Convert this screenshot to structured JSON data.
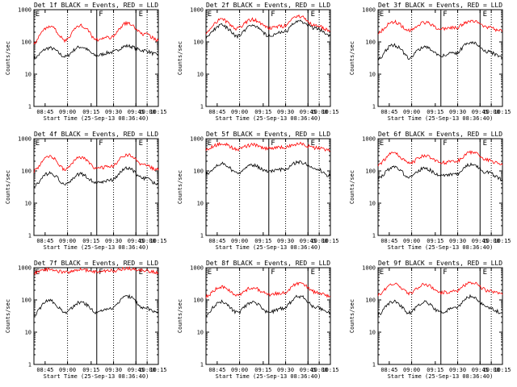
{
  "chart_data": [
    {
      "type": "line",
      "title": "Det 1f BLACK = Events, RED = LLD",
      "xlabel": "Start Time (25-Sep-13 08:36:40)",
      "ylabel": "Counts/sec",
      "yscale": "log",
      "ylim": [
        1,
        1000
      ],
      "yticks": [
        "1",
        "10",
        "100",
        "1000"
      ],
      "xticks": [
        "08:45",
        "09:00",
        "09:15",
        "09:30",
        "09:45",
        "10:00",
        "10:15"
      ],
      "flags": [
        "E",
        "F",
        "E"
      ],
      "series": [
        {
          "name": "Events",
          "color": "#000000",
          "base": [
            32,
            65,
            35,
            70,
            38,
            48,
            75,
            55,
            40
          ]
        },
        {
          "name": "LLD",
          "color": "#ff0000",
          "base": [
            95,
            300,
            110,
            320,
            120,
            140,
            380,
            180,
            115
          ]
        }
      ]
    },
    {
      "type": "line",
      "title": "Det 2f BLACK = Events, RED = LLD",
      "xlabel": "Start Time (25-Sep-13 08:36:40)",
      "ylabel": "Counts/sec",
      "yscale": "log",
      "ylim": [
        1,
        1000
      ],
      "yticks": [
        "1",
        "10",
        "100",
        "1000"
      ],
      "xticks": [
        "08:45",
        "09:00",
        "09:15",
        "09:30",
        "09:45",
        "10:00",
        "10:15"
      ],
      "flags": [
        "E",
        "F",
        "E"
      ],
      "series": [
        {
          "name": "Events",
          "color": "#000000",
          "base": [
            140,
            330,
            150,
            330,
            160,
            200,
            430,
            270,
            155
          ]
        },
        {
          "name": "LLD",
          "color": "#ff0000",
          "base": [
            200,
            490,
            260,
            500,
            270,
            310,
            620,
            330,
            230
          ]
        }
      ]
    },
    {
      "type": "line",
      "title": "Det 3f BLACK = Events, RED = LLD",
      "xlabel": "Start Time (25-Sep-13 08:36:40)",
      "ylabel": "Counts/sec",
      "yscale": "log",
      "ylim": [
        1,
        1000
      ],
      "yticks": [
        "1",
        "10",
        "100",
        "1000"
      ],
      "xticks": [
        "08:45",
        "09:00",
        "09:15",
        "09:30",
        "09:45",
        "10:00",
        "10:15"
      ],
      "flags": [
        "E",
        "F",
        "E"
      ],
      "series": [
        {
          "name": "Events",
          "color": "#000000",
          "base": [
            30,
            80,
            32,
            70,
            38,
            45,
            100,
            50,
            35
          ]
        },
        {
          "name": "LLD",
          "color": "#ff0000",
          "base": [
            200,
            420,
            230,
            400,
            250,
            280,
            450,
            280,
            220
          ]
        }
      ]
    },
    {
      "type": "line",
      "title": "Det 4f BLACK = Events, RED = LLD",
      "xlabel": "Start Time (25-Sep-13 08:36:40)",
      "ylabel": "Counts/sec",
      "yscale": "log",
      "ylim": [
        1,
        1000
      ],
      "yticks": [
        "1",
        "10",
        "100",
        "1000"
      ],
      "xticks": [
        "08:45",
        "09:00",
        "09:15",
        "09:30",
        "09:45",
        "10:00",
        "10:15"
      ],
      "flags": [
        "E",
        "F",
        "E"
      ],
      "series": [
        {
          "name": "Events",
          "color": "#000000",
          "base": [
            35,
            85,
            38,
            80,
            42,
            52,
            120,
            60,
            40
          ]
        },
        {
          "name": "LLD",
          "color": "#ff0000",
          "base": [
            100,
            280,
            110,
            260,
            120,
            140,
            320,
            150,
            110
          ]
        }
      ]
    },
    {
      "type": "line",
      "title": "Det 5f BLACK = Events, RED = LLD",
      "xlabel": "Start Time (25-Sep-13 08:36:40)",
      "ylabel": "Counts/sec",
      "yscale": "log",
      "ylim": [
        1,
        1000
      ],
      "yticks": [
        "1",
        "10",
        "100",
        "1000"
      ],
      "xticks": [
        "08:45",
        "09:00",
        "09:15",
        "09:30",
        "09:45",
        "10:00",
        "10:15"
      ],
      "flags": [
        "E",
        "F",
        "E"
      ],
      "series": [
        {
          "name": "Events",
          "color": "#000000",
          "base": [
            80,
            170,
            85,
            150,
            95,
            110,
            190,
            120,
            70
          ]
        },
        {
          "name": "LLD",
          "color": "#ff0000",
          "base": [
            480,
            700,
            470,
            650,
            500,
            540,
            700,
            520,
            430
          ]
        }
      ]
    },
    {
      "type": "line",
      "title": "Det 6f BLACK = Events, RED = LLD",
      "xlabel": "Start Time (25-Sep-13 08:36:40)",
      "ylabel": "Counts/sec",
      "yscale": "log",
      "ylim": [
        1,
        1000
      ],
      "yticks": [
        "1",
        "10",
        "100",
        "1000"
      ],
      "xticks": [
        "08:45",
        "09:00",
        "09:15",
        "09:30",
        "09:45",
        "10:00",
        "10:15"
      ],
      "flags": [
        "E",
        "F",
        "E"
      ],
      "series": [
        {
          "name": "Events",
          "color": "#000000",
          "base": [
            60,
            130,
            65,
            120,
            70,
            80,
            160,
            90,
            55
          ]
        },
        {
          "name": "LLD",
          "color": "#ff0000",
          "base": [
            160,
            350,
            170,
            300,
            180,
            200,
            380,
            220,
            160
          ]
        }
      ]
    },
    {
      "type": "line",
      "title": "Det 7f BLACK = Events, RED = LLD",
      "xlabel": "Start Time (25-Sep-13 08:36:40)",
      "ylabel": "Counts/sec",
      "yscale": "log",
      "ylim": [
        1,
        1000
      ],
      "yticks": [
        "1",
        "10",
        "100",
        "1000"
      ],
      "xticks": [
        "08:45",
        "09:00",
        "09:15",
        "09:30",
        "09:45",
        "10:00",
        "10:15"
      ],
      "flags": [
        "E",
        "F",
        "E"
      ],
      "series": [
        {
          "name": "Events",
          "color": "#000000",
          "base": [
            35,
            95,
            40,
            85,
            42,
            55,
            130,
            60,
            40
          ]
        },
        {
          "name": "LLD",
          "color": "#ff0000",
          "base": [
            700,
            900,
            720,
            880,
            750,
            800,
            950,
            820,
            720
          ]
        }
      ]
    },
    {
      "type": "line",
      "title": "Det 8f BLACK = Events, RED = LLD",
      "xlabel": "Start Time (25-Sep-13 08:36:40)",
      "ylabel": "Counts/sec",
      "yscale": "log",
      "ylim": [
        1,
        1000
      ],
      "yticks": [
        "1",
        "10",
        "100",
        "1000"
      ],
      "xticks": [
        "08:45",
        "09:00",
        "09:15",
        "09:30",
        "09:45",
        "10:00",
        "10:15"
      ],
      "flags": [
        "E",
        "F",
        "E"
      ],
      "series": [
        {
          "name": "Events",
          "color": "#000000",
          "base": [
            35,
            90,
            40,
            85,
            42,
            55,
            130,
            60,
            40
          ]
        },
        {
          "name": "LLD",
          "color": "#ff0000",
          "base": [
            130,
            260,
            140,
            240,
            150,
            170,
            330,
            180,
            130
          ]
        }
      ]
    },
    {
      "type": "line",
      "title": "Det 9f BLACK = Events, RED = LLD",
      "xlabel": "Start Time (25-Sep-13 08:36:40)",
      "ylabel": "Counts/sec",
      "yscale": "log",
      "ylim": [
        1,
        1000
      ],
      "yticks": [
        "1",
        "10",
        "100",
        "1000"
      ],
      "xticks": [
        "08:45",
        "09:00",
        "09:15",
        "09:30",
        "09:45",
        "10:00",
        "10:15"
      ],
      "flags": [
        "E",
        "F",
        "E"
      ],
      "series": [
        {
          "name": "Events",
          "color": "#000000",
          "base": [
            35,
            90,
            40,
            85,
            42,
            55,
            130,
            60,
            40
          ]
        },
        {
          "name": "LLD",
          "color": "#ff0000",
          "base": [
            150,
            320,
            160,
            300,
            170,
            190,
            350,
            200,
            150
          ]
        }
      ]
    }
  ]
}
